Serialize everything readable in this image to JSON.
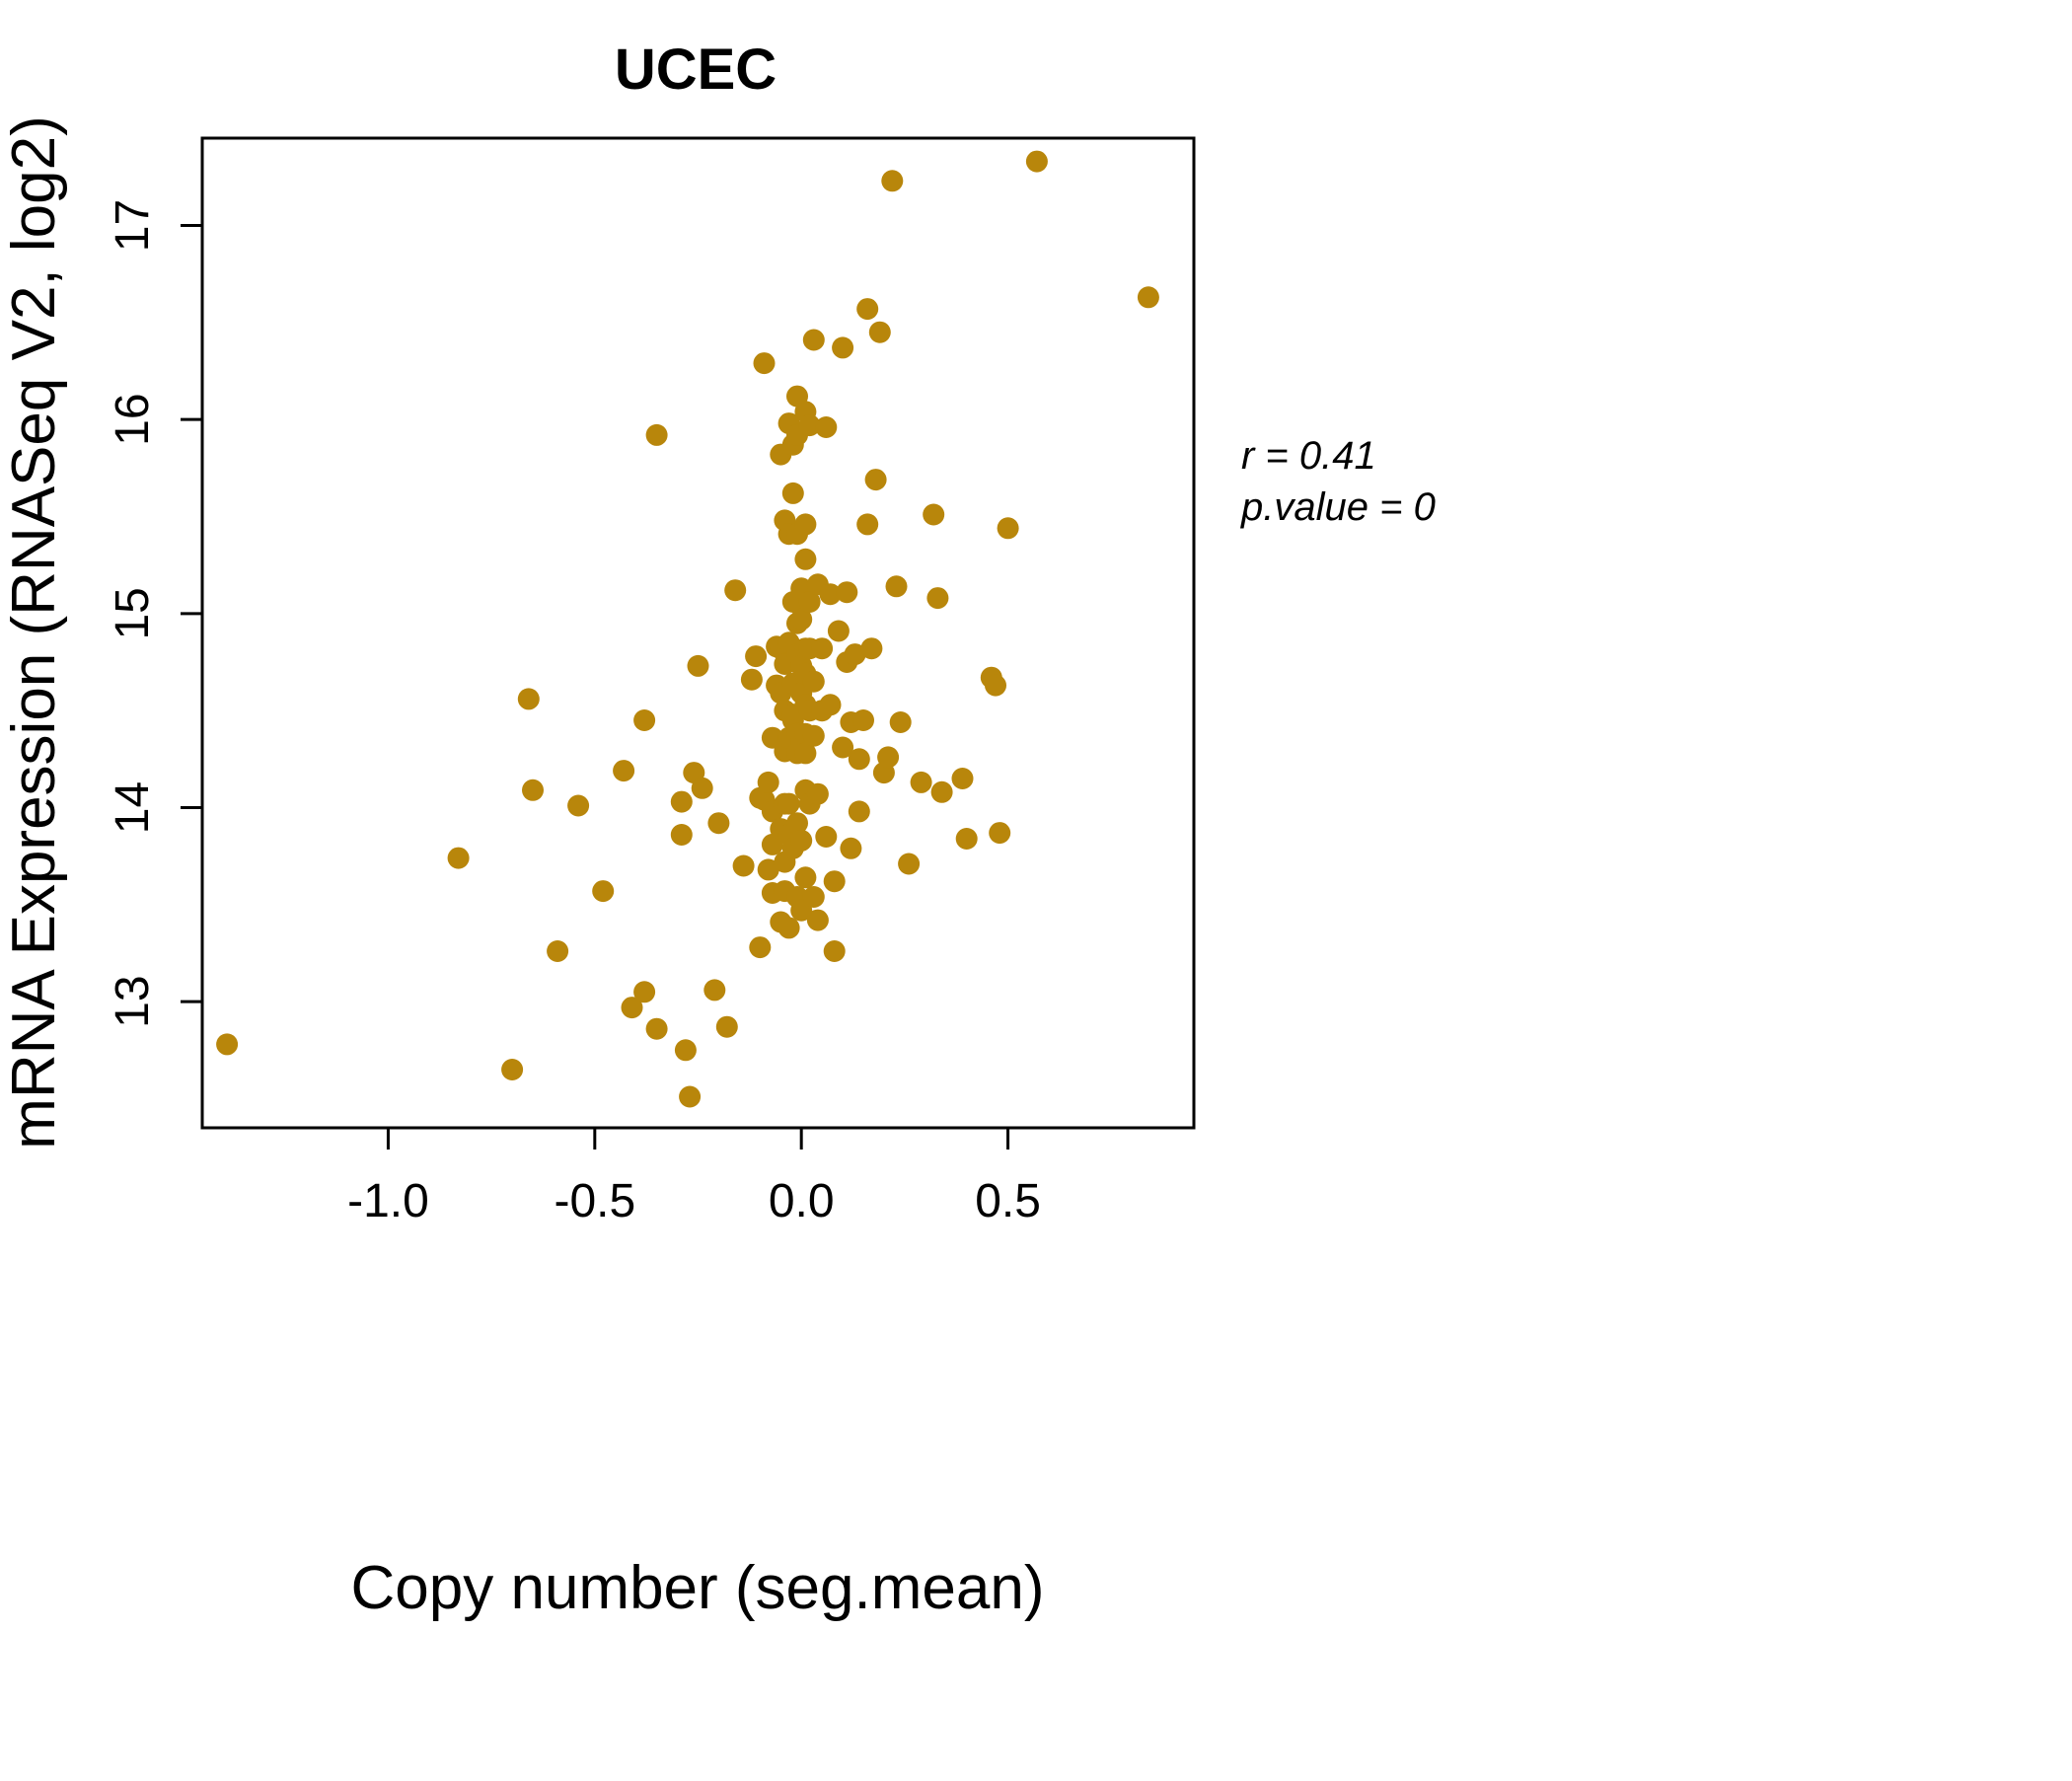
{
  "annotation": {
    "r": "r = 0.41",
    "p": "p.value = 0"
  },
  "chart_data": {
    "type": "scatter",
    "title": "UCEC",
    "xlabel": "Copy number (seg.mean)",
    "ylabel": "mRNA Expression (RNASeq V2, log2)",
    "xlim": [
      -1.45,
      0.95
    ],
    "ylim": [
      12.35,
      17.45
    ],
    "xticks": [
      -1.0,
      -0.5,
      0.0,
      0.5
    ],
    "xtick_labels": [
      "-1.0",
      "-0.5",
      "0.0",
      "0.5"
    ],
    "yticks": [
      13,
      14,
      15,
      16,
      17
    ],
    "ytick_labels": [
      "13",
      "14",
      "15",
      "16",
      "17"
    ],
    "point_color": "#B8860B",
    "title_color": "#B8860B",
    "grid": false,
    "points": [
      [
        -1.39,
        12.78
      ],
      [
        -0.83,
        13.74
      ],
      [
        -0.7,
        12.65
      ],
      [
        -0.66,
        14.56
      ],
      [
        -0.65,
        14.09
      ],
      [
        -0.59,
        13.26
      ],
      [
        -0.54,
        14.01
      ],
      [
        -0.48,
        13.57
      ],
      [
        -0.43,
        14.19
      ],
      [
        -0.41,
        12.97
      ],
      [
        -0.38,
        14.45
      ],
      [
        -0.38,
        13.05
      ],
      [
        -0.35,
        15.92
      ],
      [
        -0.35,
        12.86
      ],
      [
        -0.29,
        13.86
      ],
      [
        -0.29,
        14.03
      ],
      [
        -0.28,
        12.75
      ],
      [
        -0.27,
        12.51
      ],
      [
        -0.26,
        14.18
      ],
      [
        -0.25,
        14.73
      ],
      [
        -0.24,
        14.1
      ],
      [
        -0.21,
        13.06
      ],
      [
        -0.2,
        13.92
      ],
      [
        -0.18,
        12.87
      ],
      [
        -0.16,
        15.12
      ],
      [
        -0.14,
        13.7
      ],
      [
        -0.12,
        14.66
      ],
      [
        -0.11,
        14.78
      ],
      [
        -0.1,
        13.28
      ],
      [
        -0.1,
        14.05
      ],
      [
        -0.09,
        16.29
      ],
      [
        -0.09,
        14.04
      ],
      [
        -0.08,
        13.68
      ],
      [
        -0.08,
        14.13
      ],
      [
        -0.07,
        13.81
      ],
      [
        -0.07,
        14.36
      ],
      [
        -0.07,
        13.56
      ],
      [
        -0.07,
        13.98
      ],
      [
        -0.06,
        14.63
      ],
      [
        -0.06,
        14.83
      ],
      [
        -0.05,
        14.82
      ],
      [
        -0.05,
        13.89
      ],
      [
        -0.05,
        15.82
      ],
      [
        -0.05,
        14.59
      ],
      [
        -0.05,
        13.41
      ],
      [
        -0.04,
        13.72
      ],
      [
        -0.04,
        14.02
      ],
      [
        -0.04,
        14.29
      ],
      [
        -0.04,
        15.48
      ],
      [
        -0.04,
        14.5
      ],
      [
        -0.04,
        14.74
      ],
      [
        -0.04,
        13.57
      ],
      [
        -0.03,
        15.98
      ],
      [
        -0.03,
        14.36
      ],
      [
        -0.03,
        14.85
      ],
      [
        -0.03,
        15.41
      ],
      [
        -0.03,
        13.86
      ],
      [
        -0.03,
        14.02
      ],
      [
        -0.03,
        13.38
      ],
      [
        -0.02,
        15.62
      ],
      [
        -0.02,
        14.45
      ],
      [
        -0.02,
        14.64
      ],
      [
        -0.02,
        15.06
      ],
      [
        -0.02,
        14.48
      ],
      [
        -0.02,
        13.79
      ],
      [
        -0.02,
        15.87
      ],
      [
        -0.01,
        16.12
      ],
      [
        -0.01,
        14.38
      ],
      [
        -0.01,
        14.79
      ],
      [
        -0.01,
        13.54
      ],
      [
        -0.01,
        15.41
      ],
      [
        -0.01,
        14.28
      ],
      [
        -0.01,
        15.92
      ],
      [
        -0.01,
        14.95
      ],
      [
        -0.01,
        13.92
      ],
      [
        0.0,
        14.59
      ],
      [
        0.0,
        13.47
      ],
      [
        0.0,
        15.13
      ],
      [
        0.0,
        14.73
      ],
      [
        0.0,
        14.34
      ],
      [
        0.0,
        13.83
      ],
      [
        0.0,
        14.97
      ],
      [
        0.01,
        16.04
      ],
      [
        0.01,
        15.28
      ],
      [
        0.01,
        14.53
      ],
      [
        0.01,
        14.82
      ],
      [
        0.01,
        14.09
      ],
      [
        0.01,
        14.38
      ],
      [
        0.01,
        13.64
      ],
      [
        0.01,
        15.46
      ],
      [
        0.01,
        14.69
      ],
      [
        0.01,
        14.28
      ],
      [
        0.02,
        15.97
      ],
      [
        0.02,
        15.06
      ],
      [
        0.02,
        14.5
      ],
      [
        0.02,
        14.02
      ],
      [
        0.02,
        14.82
      ],
      [
        0.03,
        13.54
      ],
      [
        0.03,
        16.41
      ],
      [
        0.03,
        14.37
      ],
      [
        0.03,
        14.65
      ],
      [
        0.04,
        15.15
      ],
      [
        0.04,
        14.07
      ],
      [
        0.04,
        13.42
      ],
      [
        0.05,
        14.5
      ],
      [
        0.05,
        14.82
      ],
      [
        0.06,
        13.85
      ],
      [
        0.06,
        15.96
      ],
      [
        0.07,
        15.1
      ],
      [
        0.07,
        14.53
      ],
      [
        0.08,
        13.62
      ],
      [
        0.08,
        13.26
      ],
      [
        0.09,
        14.91
      ],
      [
        0.1,
        16.37
      ],
      [
        0.1,
        14.31
      ],
      [
        0.11,
        14.75
      ],
      [
        0.11,
        15.11
      ],
      [
        0.12,
        13.79
      ],
      [
        0.12,
        14.44
      ],
      [
        0.13,
        14.79
      ],
      [
        0.14,
        13.98
      ],
      [
        0.14,
        14.25
      ],
      [
        0.15,
        14.45
      ],
      [
        0.16,
        15.46
      ],
      [
        0.16,
        16.57
      ],
      [
        0.17,
        14.82
      ],
      [
        0.18,
        15.69
      ],
      [
        0.19,
        16.45
      ],
      [
        0.2,
        14.18
      ],
      [
        0.21,
        14.26
      ],
      [
        0.22,
        17.23
      ],
      [
        0.23,
        15.14
      ],
      [
        0.24,
        14.44
      ],
      [
        0.26,
        13.71
      ],
      [
        0.29,
        14.13
      ],
      [
        0.32,
        15.51
      ],
      [
        0.33,
        15.08
      ],
      [
        0.34,
        14.08
      ],
      [
        0.39,
        14.15
      ],
      [
        0.4,
        13.84
      ],
      [
        0.46,
        14.67
      ],
      [
        0.47,
        14.63
      ],
      [
        0.48,
        13.87
      ],
      [
        0.5,
        15.44
      ],
      [
        0.57,
        17.33
      ],
      [
        0.84,
        16.63
      ]
    ]
  }
}
